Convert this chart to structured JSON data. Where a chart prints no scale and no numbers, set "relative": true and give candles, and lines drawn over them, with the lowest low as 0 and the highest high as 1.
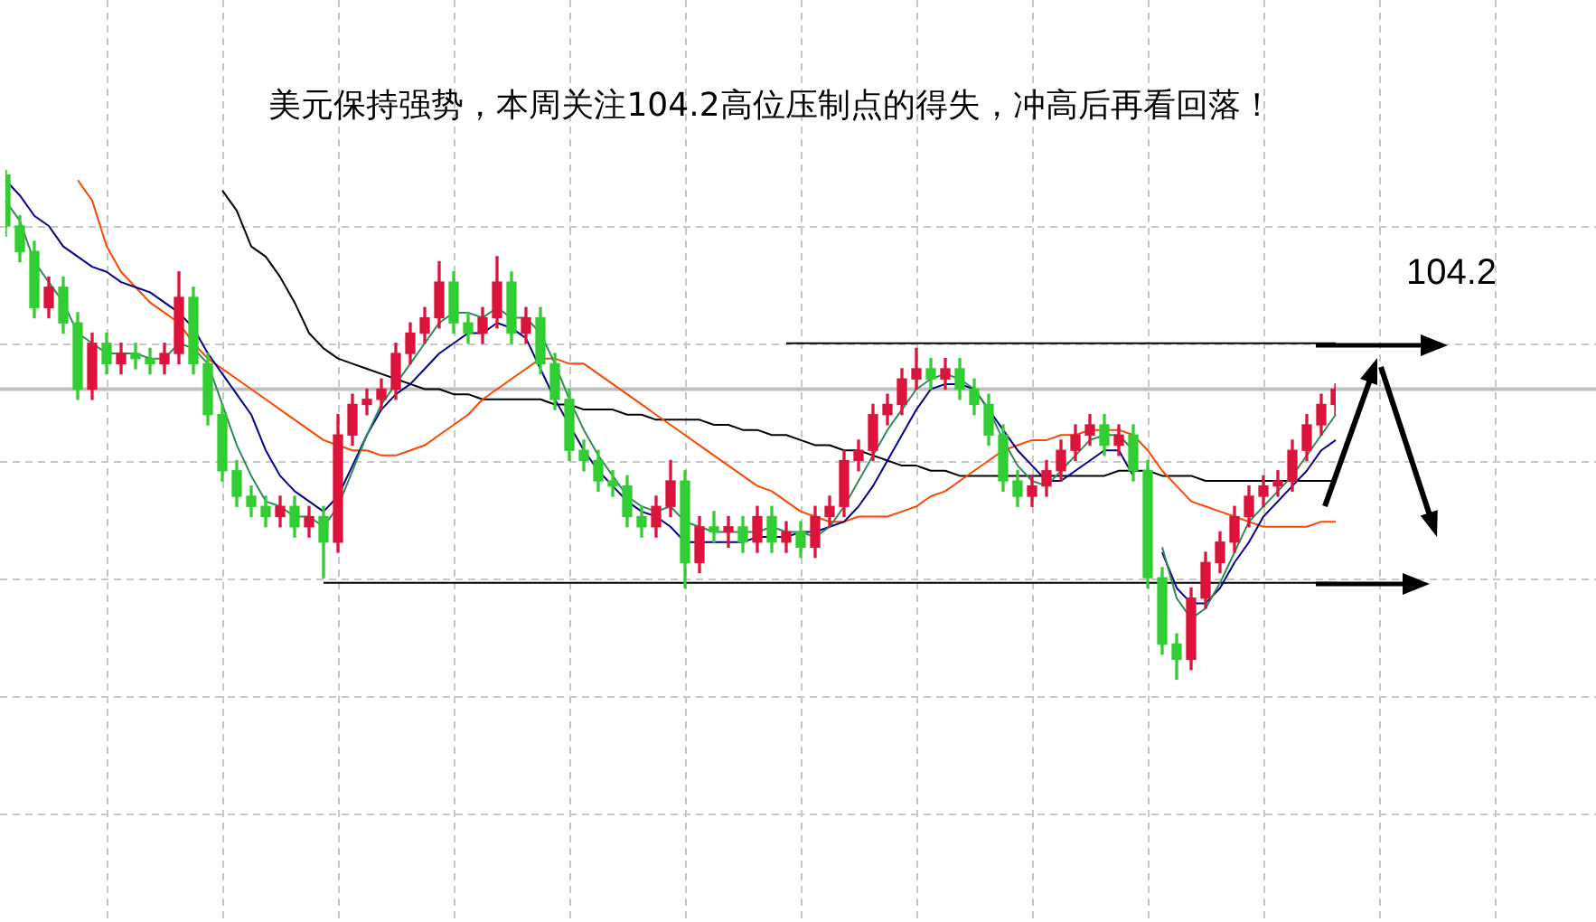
{
  "chart_data": {
    "type": "candlestick",
    "title": "美元保持强势，本周关注104.2高位压制点的得失，冲高后再看回落！",
    "annotations": [
      "104.2"
    ],
    "relative": true,
    "grid": true,
    "categories": [
      null,
      null,
      null,
      null,
      null,
      null,
      null,
      null,
      null,
      null,
      null,
      null,
      null,
      null,
      null,
      null,
      null,
      null,
      null,
      null,
      null,
      null,
      null,
      null,
      null,
      null,
      null,
      null,
      null,
      null,
      null,
      null,
      null,
      null,
      null,
      null,
      null,
      null,
      null,
      null,
      null,
      null,
      null,
      null,
      null,
      null,
      null,
      null,
      null,
      null,
      null,
      null,
      null,
      null,
      null,
      null,
      null,
      null,
      null,
      null,
      null,
      null,
      null,
      null,
      null,
      null,
      null,
      null,
      null,
      null,
      null,
      null,
      null,
      null,
      null,
      null,
      null,
      null,
      null,
      null,
      null,
      null,
      null,
      null,
      null,
      null,
      null,
      null,
      null,
      null,
      null,
      null,
      null
    ],
    "ohlc": [
      [
        0.99,
        1.0,
        0.87,
        0.89
      ],
      [
        0.89,
        0.91,
        0.82,
        0.84
      ],
      [
        0.84,
        0.86,
        0.71,
        0.73
      ],
      [
        0.73,
        0.79,
        0.71,
        0.77
      ],
      [
        0.77,
        0.79,
        0.68,
        0.7
      ],
      [
        0.7,
        0.72,
        0.55,
        0.57
      ],
      [
        0.57,
        0.68,
        0.55,
        0.66
      ],
      [
        0.66,
        0.68,
        0.6,
        0.62
      ],
      [
        0.62,
        0.66,
        0.6,
        0.64
      ],
      [
        0.64,
        0.66,
        0.61,
        0.63
      ],
      [
        0.63,
        0.65,
        0.6,
        0.62
      ],
      [
        0.62,
        0.66,
        0.6,
        0.64
      ],
      [
        0.64,
        0.8,
        0.62,
        0.75
      ],
      [
        0.75,
        0.77,
        0.6,
        0.62
      ],
      [
        0.62,
        0.64,
        0.5,
        0.52
      ],
      [
        0.52,
        0.54,
        0.39,
        0.41
      ],
      [
        0.41,
        0.43,
        0.34,
        0.36
      ],
      [
        0.36,
        0.38,
        0.32,
        0.34
      ],
      [
        0.34,
        0.36,
        0.3,
        0.32
      ],
      [
        0.32,
        0.36,
        0.3,
        0.34
      ],
      [
        0.34,
        0.36,
        0.28,
        0.3
      ],
      [
        0.3,
        0.34,
        0.28,
        0.32
      ],
      [
        0.32,
        0.34,
        0.2,
        0.27
      ],
      [
        0.27,
        0.52,
        0.25,
        0.48
      ],
      [
        0.48,
        0.56,
        0.46,
        0.54
      ],
      [
        0.54,
        0.57,
        0.52,
        0.55
      ],
      [
        0.55,
        0.59,
        0.53,
        0.57
      ],
      [
        0.57,
        0.66,
        0.55,
        0.64
      ],
      [
        0.64,
        0.7,
        0.62,
        0.68
      ],
      [
        0.68,
        0.73,
        0.66,
        0.71
      ],
      [
        0.71,
        0.82,
        0.69,
        0.78
      ],
      [
        0.78,
        0.8,
        0.68,
        0.7
      ],
      [
        0.7,
        0.72,
        0.66,
        0.68
      ],
      [
        0.68,
        0.73,
        0.66,
        0.71
      ],
      [
        0.71,
        0.83,
        0.69,
        0.78
      ],
      [
        0.78,
        0.8,
        0.66,
        0.68
      ],
      [
        0.68,
        0.73,
        0.66,
        0.71
      ],
      [
        0.71,
        0.73,
        0.6,
        0.62
      ],
      [
        0.62,
        0.64,
        0.53,
        0.55
      ],
      [
        0.55,
        0.57,
        0.43,
        0.45
      ],
      [
        0.45,
        0.47,
        0.41,
        0.43
      ],
      [
        0.43,
        0.45,
        0.37,
        0.39
      ],
      [
        0.39,
        0.41,
        0.36,
        0.38
      ],
      [
        0.38,
        0.4,
        0.3,
        0.32
      ],
      [
        0.32,
        0.34,
        0.28,
        0.3
      ],
      [
        0.3,
        0.36,
        0.28,
        0.34
      ],
      [
        0.34,
        0.43,
        0.32,
        0.39
      ],
      [
        0.39,
        0.41,
        0.18,
        0.23
      ],
      [
        0.23,
        0.32,
        0.21,
        0.3
      ],
      [
        0.3,
        0.33,
        0.27,
        0.29
      ],
      [
        0.29,
        0.32,
        0.26,
        0.3
      ],
      [
        0.3,
        0.32,
        0.25,
        0.27
      ],
      [
        0.27,
        0.34,
        0.25,
        0.32
      ],
      [
        0.32,
        0.34,
        0.25,
        0.27
      ],
      [
        0.27,
        0.31,
        0.25,
        0.29
      ],
      [
        0.29,
        0.31,
        0.24,
        0.26
      ],
      [
        0.26,
        0.34,
        0.24,
        0.32
      ],
      [
        0.32,
        0.36,
        0.3,
        0.34
      ],
      [
        0.34,
        0.45,
        0.32,
        0.43
      ],
      [
        0.43,
        0.47,
        0.41,
        0.45
      ],
      [
        0.45,
        0.54,
        0.43,
        0.52
      ],
      [
        0.52,
        0.56,
        0.5,
        0.54
      ],
      [
        0.54,
        0.61,
        0.52,
        0.59
      ],
      [
        0.59,
        0.65,
        0.57,
        0.61
      ],
      [
        0.61,
        0.63,
        0.57,
        0.59
      ],
      [
        0.59,
        0.63,
        0.57,
        0.61
      ],
      [
        0.61,
        0.63,
        0.55,
        0.57
      ],
      [
        0.57,
        0.59,
        0.52,
        0.54
      ],
      [
        0.54,
        0.56,
        0.46,
        0.48
      ],
      [
        0.48,
        0.5,
        0.37,
        0.39
      ],
      [
        0.39,
        0.41,
        0.34,
        0.36
      ],
      [
        0.36,
        0.4,
        0.34,
        0.38
      ],
      [
        0.38,
        0.43,
        0.36,
        0.41
      ],
      [
        0.41,
        0.47,
        0.39,
        0.45
      ],
      [
        0.45,
        0.5,
        0.43,
        0.48
      ],
      [
        0.48,
        0.52,
        0.46,
        0.5
      ],
      [
        0.5,
        0.52,
        0.44,
        0.46
      ],
      [
        0.46,
        0.5,
        0.44,
        0.48
      ],
      [
        0.48,
        0.5,
        0.39,
        0.41
      ],
      [
        0.41,
        0.43,
        0.18,
        0.2
      ],
      [
        0.2,
        0.22,
        0.05,
        0.07
      ],
      [
        0.07,
        0.09,
        0.0,
        0.04
      ],
      [
        0.04,
        0.18,
        0.02,
        0.16
      ],
      [
        0.16,
        0.25,
        0.14,
        0.23
      ],
      [
        0.23,
        0.29,
        0.21,
        0.27
      ],
      [
        0.27,
        0.34,
        0.25,
        0.32
      ],
      [
        0.32,
        0.38,
        0.3,
        0.36
      ],
      [
        0.36,
        0.4,
        0.34,
        0.38
      ],
      [
        0.38,
        0.41,
        0.36,
        0.39
      ],
      [
        0.39,
        0.47,
        0.37,
        0.45
      ],
      [
        0.45,
        0.52,
        0.43,
        0.5
      ],
      [
        0.5,
        0.56,
        0.48,
        0.54
      ],
      [
        0.54,
        0.58,
        0.52,
        0.57
      ]
    ],
    "colors": [
      "#32cd32",
      "#32cd32",
      "#32cd32",
      "#dc143c",
      "#32cd32",
      "#32cd32",
      "#dc143c",
      "#32cd32",
      "#dc143c",
      "#32cd32",
      "#32cd32",
      "#dc143c",
      "#dc143c",
      "#32cd32",
      "#32cd32",
      "#32cd32",
      "#32cd32",
      "#32cd32",
      "#32cd32",
      "#dc143c",
      "#32cd32",
      "#dc143c",
      "#32cd32",
      "#dc143c",
      "#dc143c",
      "#dc143c",
      "#dc143c",
      "#dc143c",
      "#dc143c",
      "#dc143c",
      "#dc143c",
      "#32cd32",
      "#32cd32",
      "#dc143c",
      "#dc143c",
      "#32cd32",
      "#dc143c",
      "#32cd32",
      "#32cd32",
      "#32cd32",
      "#32cd32",
      "#32cd32",
      "#32cd32",
      "#32cd32",
      "#32cd32",
      "#dc143c",
      "#dc143c",
      "#32cd32",
      "#dc143c",
      "#32cd32",
      "#dc143c",
      "#32cd32",
      "#dc143c",
      "#32cd32",
      "#dc143c",
      "#32cd32",
      "#dc143c",
      "#dc143c",
      "#dc143c",
      "#dc143c",
      "#dc143c",
      "#dc143c",
      "#dc143c",
      "#dc143c",
      "#32cd32",
      "#dc143c",
      "#32cd32",
      "#32cd32",
      "#32cd32",
      "#32cd32",
      "#32cd32",
      "#dc143c",
      "#dc143c",
      "#dc143c",
      "#dc143c",
      "#dc143c",
      "#32cd32",
      "#dc143c",
      "#32cd32",
      "#32cd32",
      "#32cd32",
      "#32cd32",
      "#dc143c",
      "#dc143c",
      "#dc143c",
      "#dc143c",
      "#dc143c",
      "#dc143c",
      "#dc143c",
      "#dc143c",
      "#dc143c",
      "#dc143c",
      "#dc143c"
    ],
    "series": [
      {
        "type": "line",
        "color": "#2e8b57",
        "values": [
          0.94,
          0.9,
          0.82,
          0.78,
          0.74,
          0.68,
          0.66,
          0.64,
          0.64,
          0.64,
          0.63,
          0.63,
          0.66,
          0.65,
          0.62,
          0.54,
          0.46,
          0.4,
          0.35,
          0.34,
          0.32,
          0.32,
          0.3,
          0.34,
          0.41,
          0.48,
          0.54,
          0.58,
          0.62,
          0.66,
          0.7,
          0.72,
          0.72,
          0.71,
          0.73,
          0.71,
          0.71,
          0.68,
          0.62,
          0.55,
          0.49,
          0.44,
          0.4,
          0.36,
          0.34,
          0.33,
          0.34,
          0.31,
          0.3,
          0.29,
          0.29,
          0.29,
          0.29,
          0.3,
          0.29,
          0.29,
          0.28,
          0.3,
          0.34,
          0.39,
          0.44,
          0.49,
          0.53,
          0.57,
          0.59,
          0.6,
          0.59,
          0.57,
          0.53,
          0.47,
          0.42,
          0.39,
          0.38,
          0.41,
          0.44,
          0.47,
          0.48,
          0.48,
          0.45,
          null,
          0.26,
          0.16,
          0.12,
          0.14,
          0.19,
          0.25,
          0.31,
          0.34,
          0.37,
          0.4,
          0.44,
          0.48,
          0.52
        ]
      },
      {
        "type": "line",
        "color": "#00008b",
        "values": [
          0.98,
          0.95,
          0.91,
          0.89,
          0.85,
          0.83,
          0.81,
          0.8,
          0.78,
          0.77,
          0.76,
          0.74,
          0.72,
          0.69,
          0.64,
          0.6,
          0.56,
          0.52,
          0.45,
          0.4,
          0.37,
          0.35,
          0.33,
          0.36,
          0.42,
          0.48,
          0.53,
          0.56,
          0.58,
          0.61,
          0.64,
          0.66,
          0.68,
          0.68,
          0.7,
          0.69,
          0.67,
          0.61,
          0.55,
          0.5,
          0.45,
          0.41,
          0.38,
          0.35,
          0.33,
          0.32,
          0.3,
          0.27,
          0.27,
          0.27,
          0.27,
          0.27,
          0.28,
          0.28,
          0.28,
          0.29,
          0.29,
          0.3,
          0.31,
          0.34,
          0.38,
          0.43,
          0.48,
          0.53,
          0.57,
          0.58,
          0.58,
          0.57,
          0.53,
          0.49,
          0.45,
          0.42,
          0.39,
          0.39,
          0.41,
          0.43,
          0.45,
          0.45,
          0.4,
          null,
          0.25,
          0.18,
          0.15,
          0.15,
          0.18,
          0.23,
          0.27,
          0.32,
          0.35,
          0.38,
          0.41,
          0.45,
          0.47
        ]
      },
      {
        "type": "line",
        "color": "#ff4500",
        "values": [
          null,
          null,
          null,
          null,
          null,
          0.98,
          0.94,
          0.85,
          0.8,
          0.77,
          0.74,
          0.72,
          0.7,
          0.66,
          0.63,
          0.61,
          0.59,
          0.57,
          0.55,
          0.53,
          0.51,
          0.49,
          0.47,
          0.46,
          0.45,
          0.45,
          0.44,
          0.44,
          0.45,
          0.46,
          0.48,
          0.5,
          0.52,
          0.55,
          0.57,
          0.59,
          0.61,
          0.63,
          0.63,
          0.62,
          0.62,
          0.6,
          0.58,
          0.56,
          0.54,
          0.52,
          0.5,
          0.48,
          0.46,
          0.44,
          0.42,
          0.4,
          0.38,
          0.37,
          0.35,
          0.33,
          0.32,
          0.31,
          0.31,
          0.32,
          0.32,
          0.32,
          0.33,
          0.34,
          0.36,
          0.37,
          0.39,
          0.41,
          0.43,
          0.45,
          0.46,
          0.47,
          0.47,
          0.48,
          0.48,
          0.49,
          0.49,
          0.49,
          0.48,
          0.45,
          0.41,
          0.38,
          0.35,
          0.34,
          0.33,
          0.32,
          0.31,
          0.3,
          0.3,
          0.3,
          0.3,
          0.31,
          0.31
        ]
      },
      {
        "type": "line",
        "color": "#000000",
        "values": [
          null,
          null,
          null,
          null,
          null,
          null,
          null,
          null,
          null,
          null,
          null,
          null,
          null,
          null,
          null,
          0.96,
          0.92,
          0.85,
          0.83,
          0.79,
          0.74,
          0.68,
          0.65,
          0.63,
          0.62,
          0.61,
          0.6,
          0.59,
          0.58,
          0.57,
          0.57,
          0.56,
          0.56,
          0.55,
          0.55,
          0.55,
          0.55,
          0.55,
          0.54,
          0.54,
          0.53,
          0.53,
          0.53,
          0.52,
          0.52,
          0.51,
          0.51,
          0.51,
          0.51,
          0.5,
          0.5,
          0.49,
          0.49,
          0.48,
          0.48,
          0.47,
          0.46,
          0.46,
          0.45,
          0.45,
          0.44,
          0.43,
          0.42,
          0.42,
          0.41,
          0.41,
          0.4,
          0.4,
          0.4,
          0.4,
          0.4,
          0.4,
          0.4,
          0.4,
          0.4,
          0.4,
          0.4,
          0.41,
          0.41,
          0.41,
          0.4,
          0.4,
          0.4,
          0.39,
          0.39,
          0.39,
          0.39,
          0.39,
          0.39,
          0.39,
          0.39,
          0.39,
          0.39
        ]
      },
      {
        "type": "line",
        "color": "#000000",
        "values": [
          null,
          null,
          null,
          null,
          null,
          null,
          null,
          null,
          null,
          null,
          null,
          null,
          null,
          null,
          null,
          null,
          null,
          null,
          null,
          null,
          null,
          null,
          null,
          null,
          null,
          null,
          null,
          null,
          null,
          null,
          null,
          null,
          null,
          null,
          null,
          null,
          null,
          null,
          null,
          null,
          null,
          null,
          null,
          null,
          null,
          null,
          null,
          null,
          null,
          null,
          null,
          null,
          null,
          null,
          0.66,
          0.66,
          0.66,
          0.66,
          0.66,
          0.66,
          0.66,
          0.66,
          0.66,
          0.66,
          0.66,
          0.66,
          0.66,
          0.66,
          0.66,
          0.66,
          0.66,
          0.66,
          0.66,
          0.66,
          0.66,
          0.66,
          0.66,
          0.66,
          0.66,
          0.66,
          0.66,
          0.66,
          0.66,
          0.66,
          0.66,
          0.66,
          0.66,
          0.66,
          0.66,
          0.66,
          0.66,
          0.66,
          0.66
        ]
      },
      {
        "type": "line",
        "color": "#000000",
        "values": [
          null,
          null,
          null,
          null,
          null,
          null,
          null,
          null,
          null,
          null,
          null,
          null,
          null,
          null,
          null,
          null,
          null,
          null,
          null,
          null,
          null,
          null,
          0.19,
          0.19,
          0.19,
          0.19,
          0.19,
          0.19,
          0.19,
          0.19,
          0.19,
          0.19,
          0.19,
          0.19,
          0.19,
          0.19,
          0.19,
          0.19,
          0.19,
          0.19,
          0.19,
          0.19,
          0.19,
          0.19,
          0.19,
          0.19,
          0.19,
          0.19,
          0.19,
          0.19,
          0.19,
          0.19,
          0.19,
          0.19,
          0.19,
          0.19,
          0.19,
          0.19,
          0.19,
          0.19,
          0.19,
          0.19,
          0.19,
          0.19,
          0.19,
          0.19,
          0.19,
          0.19,
          0.19,
          0.19,
          0.19,
          0.19,
          0.19,
          0.19,
          0.19,
          0.19,
          0.19,
          0.19,
          0.19,
          0.19,
          0.19,
          0.19,
          0.19,
          0.19,
          0.19,
          0.19,
          0.19,
          0.19,
          0.19,
          0.19,
          0.19,
          0.19,
          0.19
        ]
      }
    ],
    "ref_lines": [
      {
        "axis": "y",
        "value": 0.57,
        "color": "#c0c0c0",
        "line_style": "solid"
      }
    ]
  }
}
